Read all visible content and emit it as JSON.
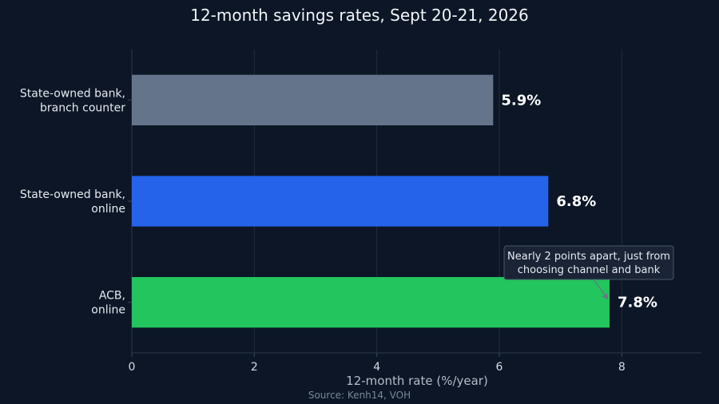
{
  "chart_data": {
    "type": "bar",
    "orientation": "horizontal",
    "title": "12-month savings rates, Sept 20-21, 2026",
    "xlabel": "12-month rate (%/year)",
    "ylabel": "",
    "xlim": [
      0,
      9.3
    ],
    "xticks": [
      0,
      2,
      4,
      6,
      8
    ],
    "grid": true,
    "categories": [
      [
        "State-owned bank,",
        "branch counter"
      ],
      [
        "State-owned bank,",
        "online"
      ],
      [
        "ACB,",
        "online"
      ]
    ],
    "values": [
      5.9,
      6.8,
      7.8
    ],
    "value_labels": [
      "5.9%",
      "6.8%",
      "7.8%"
    ],
    "colors": [
      "#64748b",
      "#2563eb",
      "#22c55e"
    ],
    "annotation": {
      "lines": [
        "Nearly 2 points apart, just from",
        "choosing channel and bank"
      ],
      "target_index": 2
    },
    "source": "Source: Kenh14, VOH"
  }
}
